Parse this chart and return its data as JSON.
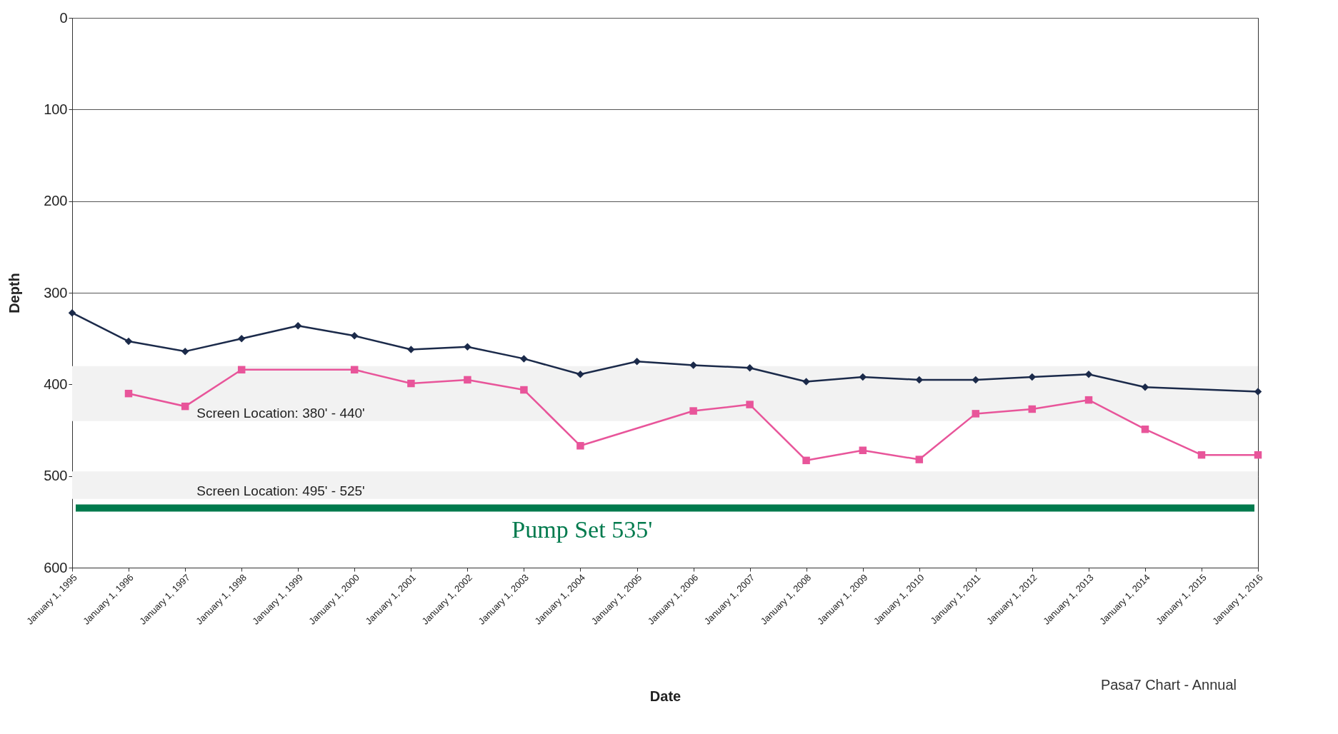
{
  "chart_data": {
    "type": "line",
    "xlabel": "Date",
    "ylabel": "Depth",
    "x": [
      "1995-01-01",
      "1996-01-01",
      "1997-01-01",
      "1998-01-01",
      "1999-01-01",
      "2000-01-01",
      "2001-01-01",
      "2002-01-01",
      "2003-01-01",
      "2004-01-01",
      "2005-01-01",
      "2006-01-01",
      "2007-01-01",
      "2008-01-01",
      "2009-01-01",
      "2010-01-01",
      "2011-01-01",
      "2012-01-01",
      "2013-01-01",
      "2014-01-01",
      "2016-01-01"
    ],
    "series": [
      {
        "color": "#1b2a4a",
        "marker": "diamond",
        "values": [
          322,
          353,
          364,
          350,
          336,
          347,
          362,
          359,
          372,
          389,
          375,
          379,
          382,
          397,
          392,
          395,
          395,
          392,
          389,
          403,
          408
        ]
      },
      {
        "color": "#e8559a",
        "marker": "square",
        "x": [
          "1996-01-01",
          "1997-01-01",
          "1998-01-01",
          "2000-01-01",
          "2001-01-01",
          "2002-01-01",
          "2003-01-01",
          "2004-01-01",
          "2006-01-01",
          "2007-01-01",
          "2008-01-01",
          "2009-01-01",
          "2010-01-01",
          "2011-01-01",
          "2012-01-01",
          "2013-01-01",
          "2014-01-01",
          "2015-01-01",
          "2016-01-01"
        ],
        "values": [
          410,
          424,
          384,
          384,
          399,
          395,
          406,
          467,
          429,
          422,
          483,
          472,
          482,
          432,
          427,
          417,
          449,
          477,
          477
        ]
      }
    ],
    "line_style": "solid",
    "ylim": [
      600,
      0
    ],
    "yticks": [
      0,
      100,
      200,
      300,
      400,
      500,
      600
    ],
    "xlim": [
      "1995-01-01",
      "2016-01-01"
    ],
    "xticks": [
      {
        "value": "1995-01-01",
        "label": "January 1, 1995"
      },
      {
        "value": "1996-01-01",
        "label": "January 1, 1996"
      },
      {
        "value": "1997-01-01",
        "label": "January 1, 1997"
      },
      {
        "value": "1998-01-01",
        "label": "January 1, 1998"
      },
      {
        "value": "1999-01-01",
        "label": "January 1, 1999"
      },
      {
        "value": "2000-01-01",
        "label": "January 1, 2000"
      },
      {
        "value": "2001-01-01",
        "label": "January 1, 2001"
      },
      {
        "value": "2002-01-01",
        "label": "January 1, 2002"
      },
      {
        "value": "2003-01-01",
        "label": "January 1, 2003"
      },
      {
        "value": "2004-01-01",
        "label": "January 1, 2004"
      },
      {
        "value": "2005-01-01",
        "label": "January 1, 2005"
      },
      {
        "value": "2006-01-01",
        "label": "January 1, 2006"
      },
      {
        "value": "2007-01-01",
        "label": "January 1, 2007"
      },
      {
        "value": "2008-01-01",
        "label": "January 1, 2008"
      },
      {
        "value": "2009-01-01",
        "label": "January 1, 2009"
      },
      {
        "value": "2010-01-01",
        "label": "January 1, 2010"
      },
      {
        "value": "2011-01-01",
        "label": "January 1, 2011"
      },
      {
        "value": "2012-01-01",
        "label": "January 1, 2012"
      },
      {
        "value": "2013-01-01",
        "label": "January 1, 2013"
      },
      {
        "value": "2014-01-01",
        "label": "January 1, 2014"
      },
      {
        "value": "2015-01-01",
        "label": "January 1, 2015"
      },
      {
        "value": "2016-01-01",
        "label": "January 1, 2016"
      }
    ],
    "grid": "y",
    "legend": false,
    "bands": [
      {
        "axis": "y",
        "from": 380,
        "to": 440,
        "label": "Screen Location: 380' - 440'",
        "color": "#f2f2f2"
      },
      {
        "axis": "y",
        "from": 495,
        "to": 525,
        "label": "Screen Location: 495' - 525'",
        "color": "#f2f2f2"
      }
    ],
    "ref_lines": [
      {
        "axis": "y",
        "value": 535,
        "label": "Pump Set 535'",
        "color": "#007a4d"
      }
    ],
    "annotations": [
      "Pasa7 Chart - Annual"
    ]
  }
}
